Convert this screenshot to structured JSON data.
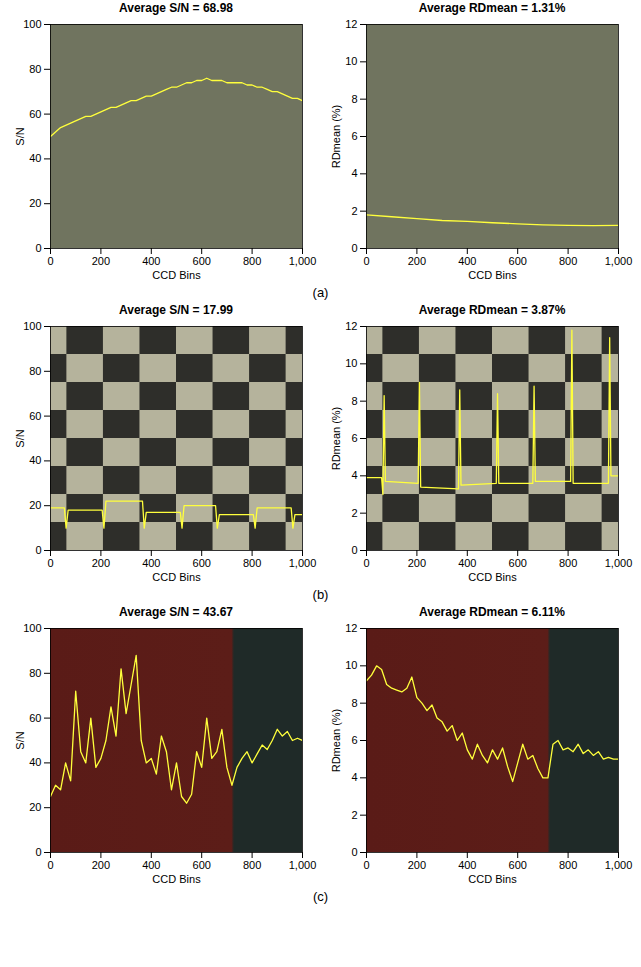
{
  "panel_labels": [
    "(a)",
    "(b)",
    "(c)"
  ],
  "chart_data": [
    {
      "type": "line",
      "title": "Average S/N = 68.98",
      "xlabel": "CCD Bins",
      "ylabel": "S/N",
      "color": "#ffff3c",
      "grid": false,
      "xlim": [
        0,
        1000
      ],
      "xticks": [
        0,
        200,
        400,
        600,
        800,
        1000
      ],
      "ylim": [
        0,
        100
      ],
      "yticks": [
        0,
        20,
        40,
        60,
        80,
        100
      ],
      "x": [
        0,
        20,
        40,
        60,
        80,
        100,
        120,
        140,
        160,
        180,
        200,
        220,
        240,
        260,
        280,
        300,
        320,
        340,
        360,
        380,
        400,
        420,
        440,
        460,
        480,
        500,
        520,
        540,
        560,
        580,
        600,
        620,
        640,
        660,
        680,
        700,
        720,
        740,
        760,
        780,
        800,
        820,
        840,
        860,
        880,
        900,
        920,
        940,
        960,
        980,
        1000
      ],
      "values": [
        50,
        52,
        54,
        55,
        56,
        57,
        58,
        59,
        59,
        60,
        61,
        62,
        63,
        63,
        64,
        65,
        66,
        66,
        67,
        68,
        68,
        69,
        70,
        71,
        72,
        72,
        73,
        74,
        74,
        75,
        75,
        76,
        75,
        75,
        75,
        74,
        74,
        74,
        74,
        73,
        73,
        72,
        72,
        71,
        70,
        70,
        69,
        68,
        67,
        67,
        66
      ]
    },
    {
      "type": "line",
      "title": "Average RDmean = 1.31%",
      "xlabel": "CCD Bins",
      "ylabel": "RDmean (%)",
      "color": "#ffff3c",
      "grid": false,
      "xlim": [
        0,
        1000
      ],
      "xticks": [
        0,
        200,
        400,
        600,
        800,
        1000
      ],
      "ylim": [
        0,
        12
      ],
      "yticks": [
        0,
        2,
        4,
        6,
        8,
        10,
        12
      ],
      "x": [
        0,
        100,
        200,
        300,
        400,
        500,
        600,
        700,
        800,
        900,
        1000
      ],
      "values": [
        1.8,
        1.7,
        1.6,
        1.5,
        1.45,
        1.38,
        1.32,
        1.27,
        1.24,
        1.23,
        1.24
      ]
    },
    {
      "type": "line",
      "title": "Average S/N = 17.99",
      "xlabel": "CCD Bins",
      "ylabel": "S/N",
      "color": "#ffff3c",
      "grid": false,
      "xlim": [
        0,
        1000
      ],
      "xticks": [
        0,
        200,
        400,
        600,
        800,
        1000
      ],
      "ylim": [
        0,
        100
      ],
      "yticks": [
        0,
        20,
        40,
        60,
        80,
        100
      ],
      "x": [
        0,
        55,
        62,
        70,
        205,
        212,
        220,
        365,
        372,
        380,
        515,
        522,
        530,
        655,
        662,
        670,
        805,
        812,
        820,
        955,
        962,
        970,
        1000
      ],
      "values": [
        19,
        19,
        10,
        18,
        18,
        10,
        22,
        22,
        10,
        17,
        17,
        10,
        20,
        20,
        10,
        16,
        16,
        10,
        19,
        19,
        10,
        16,
        16
      ]
    },
    {
      "type": "line",
      "title": "Average RDmean = 3.87%",
      "xlabel": "CCD Bins",
      "ylabel": "RDmean (%)",
      "color": "#ffff3c",
      "grid": false,
      "xlim": [
        0,
        1000
      ],
      "xticks": [
        0,
        200,
        400,
        600,
        800,
        1000
      ],
      "ylim": [
        0,
        12
      ],
      "yticks": [
        0,
        2,
        4,
        6,
        8,
        10,
        12
      ],
      "x": [
        0,
        60,
        65,
        70,
        75,
        205,
        210,
        215,
        365,
        370,
        375,
        515,
        520,
        525,
        660,
        665,
        670,
        810,
        815,
        820,
        960,
        965,
        970,
        1000
      ],
      "values": [
        3.9,
        3.9,
        3.0,
        8.3,
        3.7,
        3.6,
        9.0,
        3.4,
        3.3,
        8.6,
        3.5,
        3.6,
        8.4,
        3.6,
        3.6,
        8.8,
        3.7,
        3.7,
        11.8,
        3.6,
        3.6,
        11.4,
        4.0,
        4.0
      ]
    },
    {
      "type": "line",
      "title": "Average S/N = 43.67",
      "xlabel": "CCD Bins",
      "ylabel": "S/N",
      "color": "#ffff3c",
      "grid": false,
      "xlim": [
        0,
        1000
      ],
      "xticks": [
        0,
        200,
        400,
        600,
        800,
        1000
      ],
      "ylim": [
        0,
        100
      ],
      "yticks": [
        0,
        20,
        40,
        60,
        80,
        100
      ],
      "x": [
        0,
        20,
        40,
        60,
        80,
        100,
        120,
        140,
        160,
        180,
        200,
        220,
        240,
        260,
        280,
        300,
        320,
        340,
        360,
        380,
        400,
        420,
        440,
        460,
        480,
        500,
        520,
        540,
        560,
        580,
        600,
        620,
        640,
        660,
        680,
        700,
        720,
        740,
        760,
        780,
        800,
        820,
        840,
        860,
        880,
        900,
        920,
        940,
        960,
        980,
        1000
      ],
      "values": [
        25,
        30,
        28,
        40,
        32,
        72,
        45,
        40,
        60,
        38,
        42,
        50,
        65,
        52,
        82,
        62,
        75,
        88,
        50,
        40,
        42,
        35,
        52,
        45,
        28,
        40,
        25,
        22,
        26,
        45,
        38,
        60,
        42,
        45,
        55,
        38,
        30,
        38,
        42,
        45,
        40,
        44,
        48,
        46,
        50,
        55,
        52,
        54,
        50,
        51,
        50
      ]
    },
    {
      "type": "line",
      "title": "Average RDmean = 6.11%",
      "xlabel": "CCD Bins",
      "ylabel": "RDmean (%)",
      "color": "#ffff3c",
      "grid": false,
      "xlim": [
        0,
        1000
      ],
      "xticks": [
        0,
        200,
        400,
        600,
        800,
        1000
      ],
      "ylim": [
        0,
        12
      ],
      "yticks": [
        0,
        2,
        4,
        6,
        8,
        10,
        12
      ],
      "x": [
        0,
        20,
        40,
        60,
        80,
        100,
        120,
        140,
        160,
        180,
        200,
        220,
        240,
        260,
        280,
        300,
        320,
        340,
        360,
        380,
        400,
        420,
        440,
        460,
        480,
        500,
        520,
        540,
        560,
        580,
        600,
        620,
        640,
        660,
        680,
        700,
        720,
        740,
        760,
        780,
        800,
        820,
        840,
        860,
        880,
        900,
        920,
        940,
        960,
        980,
        1000
      ],
      "values": [
        9.2,
        9.5,
        10.0,
        9.8,
        9.0,
        8.8,
        8.7,
        8.6,
        8.8,
        9.4,
        8.3,
        8.0,
        7.6,
        7.9,
        7.2,
        7.0,
        6.5,
        6.8,
        6.0,
        6.4,
        5.5,
        5.0,
        5.8,
        5.2,
        4.8,
        5.5,
        5.0,
        5.6,
        4.6,
        3.8,
        4.8,
        5.8,
        5.0,
        5.2,
        4.5,
        4.0,
        4.0,
        5.8,
        6.0,
        5.5,
        5.6,
        5.4,
        5.8,
        5.3,
        5.5,
        5.2,
        5.4,
        5.0,
        5.1,
        5.0,
        5.0
      ]
    }
  ]
}
